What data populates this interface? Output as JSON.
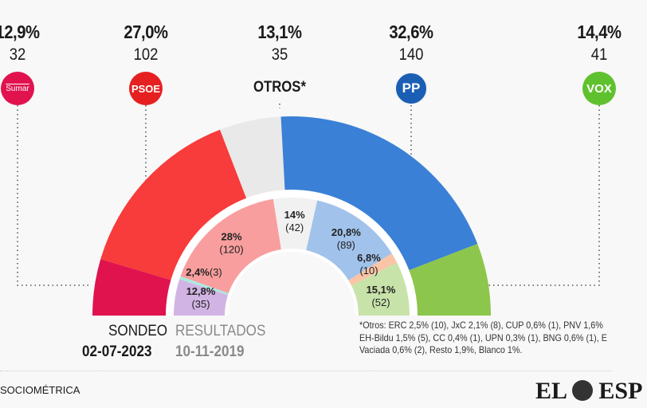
{
  "chart_data": {
    "type": "hemicycle",
    "outer": {
      "label": "SONDEO",
      "date": "02-07-2023",
      "parties": [
        {
          "name": "Sumar",
          "pct": "12,9%",
          "seats": 32,
          "color": "#e0134f",
          "logo_text": "Sumar"
        },
        {
          "name": "PSOE",
          "pct": "27,0%",
          "seats": 102,
          "color": "#f83b3b",
          "logo_text": "PSOE"
        },
        {
          "name": "OTROS*",
          "pct": "13,1%",
          "seats": 35,
          "color": "#e9e9e9",
          "logo_text": ""
        },
        {
          "name": "PP",
          "pct": "32,6%",
          "seats": 140,
          "color": "#3a80d6",
          "logo_text": "PP"
        },
        {
          "name": "VOX",
          "pct": "14,4%",
          "seats": 41,
          "color": "#8dc64c",
          "logo_text": "VOX"
        }
      ]
    },
    "inner": {
      "label": "RESULTADOS",
      "date": "10-11-2019",
      "parties": [
        {
          "pct": "12,8%",
          "seats": 35,
          "seats_label": "(35)",
          "color": "#d2b4e4"
        },
        {
          "pct": "2,4%",
          "seats": 3,
          "seats_label": "(3)",
          "color": "#a8ece0"
        },
        {
          "pct": "28%",
          "seats": 120,
          "seats_label": "(120)",
          "color": "#f99e9e"
        },
        {
          "pct": "14%",
          "seats": 42,
          "seats_label": "(42)",
          "color": "#f1f1f1"
        },
        {
          "pct": "20,8%",
          "seats": 89,
          "seats_label": "(89)",
          "color": "#a1c2ea"
        },
        {
          "pct": "6,8%",
          "seats": 10,
          "seats_label": "(10)",
          "color": "#fac4a6"
        },
        {
          "pct": "15,1%",
          "seats": 52,
          "seats_label": "(52)",
          "color": "#c8e3aa"
        }
      ]
    }
  },
  "note_lines": [
    "*Otros: ERC 2,5% (10), JxC 2,1% (8), CUP 0,6% (1), PNV 1,6%",
    "EH-Bildu 1,5% (5), CC 0,4% (1), UPN 0,3% (1), BNG 0,6% (1), E",
    "Vaciada 0,6% (2), Resto 1,9%, Blanco 1%."
  ],
  "source": "SOCIOMÉTRICA",
  "brand": "EL ESP"
}
